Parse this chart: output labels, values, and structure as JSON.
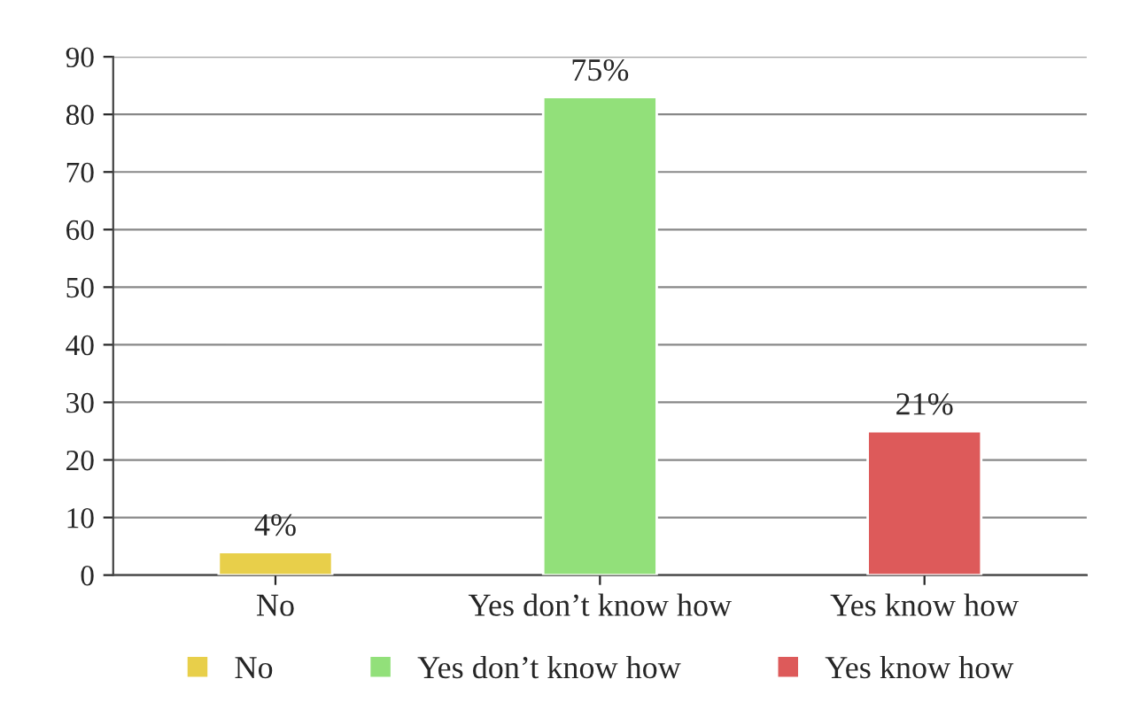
{
  "chart_data": {
    "type": "bar",
    "categories": [
      "No",
      "Yes don’t know how",
      "Yes know how"
    ],
    "series": [
      {
        "name": "No",
        "color": "#e8cf4a",
        "values": [
          4,
          null,
          null
        ]
      },
      {
        "name": "Yes don’t know how",
        "color": "#92e07a",
        "values": [
          null,
          83,
          null
        ]
      },
      {
        "name": "Yes know how",
        "color": "#dd5a5a",
        "values": [
          null,
          null,
          25
        ]
      }
    ],
    "annotations": [
      {
        "text": "4%",
        "x": "No",
        "y": 4
      },
      {
        "text": "75%",
        "x": "Yes don’t know how",
        "y": 83
      },
      {
        "text": "21%",
        "x": "Yes know how",
        "y": 25
      }
    ],
    "ylim": [
      0,
      90
    ],
    "yticks": [
      0,
      10,
      20,
      30,
      40,
      50,
      60,
      70,
      80,
      90
    ],
    "grid": "y",
    "legend": "bottom"
  }
}
